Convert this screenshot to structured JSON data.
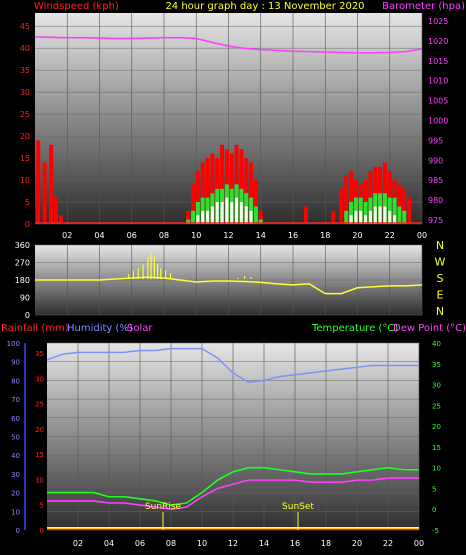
{
  "title": "24 hour graph day : 13 November 2020",
  "chart_data": [
    {
      "type": "line",
      "name": "panel-wind-pressure",
      "left_axis_label": "Windspeed (kph)",
      "right_axis_label": "Barometer (hpa)",
      "left_ticks": [
        "0",
        "5",
        "10",
        "15",
        "20",
        "25",
        "30",
        "35",
        "40",
        "45"
      ],
      "left_ylim": [
        0,
        48
      ],
      "right_ticks": [
        "975",
        "980",
        "985",
        "990",
        "995",
        "1000",
        "1005",
        "1010",
        "1015",
        "1020",
        "1025"
      ],
      "right_ylim": [
        974,
        1027
      ],
      "x_ticks": [
        "02",
        "04",
        "06",
        "08",
        "10",
        "12",
        "14",
        "16",
        "18",
        "20",
        "22",
        "00"
      ],
      "x_range_hours": [
        0,
        24
      ],
      "barometer": {
        "x": [
          0,
          1,
          2,
          3,
          4,
          5,
          6,
          7,
          8,
          9,
          10,
          11,
          12,
          13,
          14,
          15,
          16,
          17,
          18,
          19,
          20,
          21,
          22,
          23,
          24
        ],
        "y": [
          1021,
          1020.9,
          1020.8,
          1020.8,
          1020.7,
          1020.6,
          1020.6,
          1020.7,
          1020.8,
          1020.8,
          1020.6,
          1019.6,
          1018.7,
          1018.1,
          1017.8,
          1017.6,
          1017.4,
          1017.3,
          1017.2,
          1017.1,
          1017.0,
          1017.0,
          1017.1,
          1017.3,
          1018
        ]
      },
      "wind_gust": {
        "x": [
          0.2,
          0.6,
          1.0,
          1.3,
          1.6,
          9.5,
          9.8,
          10.1,
          10.4,
          10.7,
          11.0,
          11.3,
          11.6,
          11.9,
          12.2,
          12.5,
          12.8,
          13.1,
          13.4,
          13.7,
          14.0,
          16.8,
          18.5,
          19.0,
          19.3,
          19.6,
          19.9,
          20.2,
          20.5,
          20.8,
          21.1,
          21.4,
          21.7,
          22.0,
          22.3,
          22.6,
          22.9,
          23.2
        ],
        "y": [
          19,
          14,
          18,
          6,
          2,
          3,
          9,
          12,
          14,
          15,
          16,
          15,
          18,
          17,
          16,
          18,
          17,
          15,
          14,
          10,
          3,
          4,
          3,
          8,
          11,
          12,
          10,
          9,
          10,
          12,
          13,
          13,
          14,
          12,
          10,
          9,
          8,
          6
        ]
      },
      "wind_avg": {
        "x": [
          9.5,
          9.8,
          10.1,
          10.4,
          10.7,
          11.0,
          11.3,
          11.6,
          11.9,
          12.2,
          12.5,
          12.8,
          13.1,
          13.4,
          13.7,
          14.0,
          19.3,
          19.6,
          19.9,
          20.2,
          20.5,
          20.8,
          21.1,
          21.4,
          21.7,
          22.0,
          22.3,
          22.6,
          22.9
        ],
        "y": [
          1,
          3,
          5,
          6,
          6,
          7,
          8,
          8,
          9,
          8,
          9,
          8,
          7,
          6,
          4,
          1,
          3,
          5,
          6,
          6,
          5,
          6,
          7,
          7,
          7,
          6,
          6,
          4,
          3
        ]
      },
      "wind_lull": {
        "x": [
          10.1,
          10.4,
          10.7,
          11.0,
          11.3,
          11.6,
          11.9,
          12.2,
          12.5,
          12.8,
          13.1,
          13.4,
          19.6,
          19.9,
          20.2,
          20.5,
          20.8,
          21.1,
          21.4,
          21.7,
          22.0,
          22.3
        ],
        "y": [
          2,
          3,
          3,
          4,
          5,
          5,
          6,
          5,
          6,
          5,
          4,
          3,
          2,
          3,
          3,
          2,
          3,
          4,
          4,
          4,
          3,
          2
        ]
      }
    },
    {
      "type": "line",
      "name": "panel-wind-direction",
      "left_ticks": [
        "0",
        "90",
        "180",
        "270",
        "360"
      ],
      "ylim": [
        0,
        360
      ],
      "compass_labels": [
        "N",
        "W",
        "S",
        "E",
        "N"
      ],
      "direction": {
        "x": [
          0,
          1,
          2,
          3,
          4,
          5,
          6,
          7,
          8,
          9,
          10,
          11,
          12,
          13,
          14,
          15,
          16,
          17,
          18,
          19,
          20,
          21,
          22,
          23,
          24
        ],
        "y": [
          180,
          180,
          180,
          180,
          180,
          185,
          190,
          195,
          190,
          180,
          170,
          175,
          175,
          172,
          168,
          160,
          155,
          160,
          110,
          110,
          140,
          145,
          150,
          150,
          155
        ]
      },
      "direction_spikes": {
        "x": [
          5.8,
          6.1,
          6.4,
          6.7,
          7.0,
          7.2,
          7.4,
          7.6,
          7.8,
          8.1,
          8.4,
          12.6,
          13.0,
          13.4
        ],
        "y": [
          210,
          230,
          240,
          260,
          300,
          320,
          300,
          260,
          240,
          230,
          215,
          190,
          200,
          195
        ]
      }
    },
    {
      "type": "line",
      "name": "panel-temp-humidity",
      "left_labels": [
        "Rainfall (mm)",
        "Humidity (%)",
        "Solar"
      ],
      "right_labels": [
        "Temperature (°C)",
        "Dew Point (°C)"
      ],
      "humidity_ticks": [
        "0",
        "10",
        "20",
        "30",
        "40",
        "50",
        "60",
        "70",
        "80",
        "90",
        "100"
      ],
      "humidity_ylim": [
        0,
        100
      ],
      "solar_ticks": [
        "0",
        "5",
        "10",
        "15",
        "20",
        "25",
        "30",
        "35"
      ],
      "rain_ticks": [],
      "temp_ticks": [
        "-5",
        "0",
        "5",
        "10",
        "15",
        "20",
        "25",
        "30",
        "35",
        "40"
      ],
      "temp_ylim": [
        -5,
        40
      ],
      "x_ticks": [
        "02",
        "04",
        "06",
        "08",
        "10",
        "12",
        "14",
        "16",
        "18",
        "20",
        "22",
        "00"
      ],
      "annotations": [
        "SunRise",
        "SunSet"
      ],
      "humidity": {
        "x": [
          0,
          1,
          2,
          3,
          4,
          5,
          6,
          7,
          8,
          9,
          10,
          11,
          12,
          13,
          14,
          15,
          16,
          17,
          18,
          19,
          20,
          21,
          22,
          23,
          24
        ],
        "y": [
          91,
          94,
          95,
          95,
          95,
          95,
          96,
          96,
          97,
          97,
          97,
          92,
          84,
          79,
          80,
          82,
          83,
          84,
          85,
          86,
          87,
          88,
          88,
          88,
          88
        ]
      },
      "temperature": {
        "x": [
          0,
          1,
          2,
          3,
          4,
          5,
          6,
          7,
          8,
          9,
          10,
          11,
          12,
          13,
          14,
          15,
          16,
          17,
          18,
          19,
          20,
          21,
          22,
          23,
          24
        ],
        "y": [
          4,
          4,
          4,
          4,
          3,
          3,
          2.5,
          2,
          1,
          1.5,
          4,
          7,
          9,
          10,
          10,
          9.5,
          9,
          8.5,
          8.5,
          8.5,
          9,
          9.5,
          10,
          9.5,
          9.5
        ]
      },
      "dewpoint": {
        "x": [
          0,
          1,
          2,
          3,
          4,
          5,
          6,
          7,
          8,
          9,
          10,
          11,
          12,
          13,
          14,
          15,
          16,
          17,
          18,
          19,
          20,
          21,
          22,
          23,
          24
        ],
        "y": [
          2,
          2,
          2,
          2,
          1.5,
          1.5,
          1,
          0.5,
          0,
          0.5,
          3,
          5,
          6,
          7,
          7,
          7,
          7,
          6.5,
          6.5,
          6.5,
          7,
          7,
          7.5,
          7.5,
          7.5
        ]
      }
    }
  ]
}
